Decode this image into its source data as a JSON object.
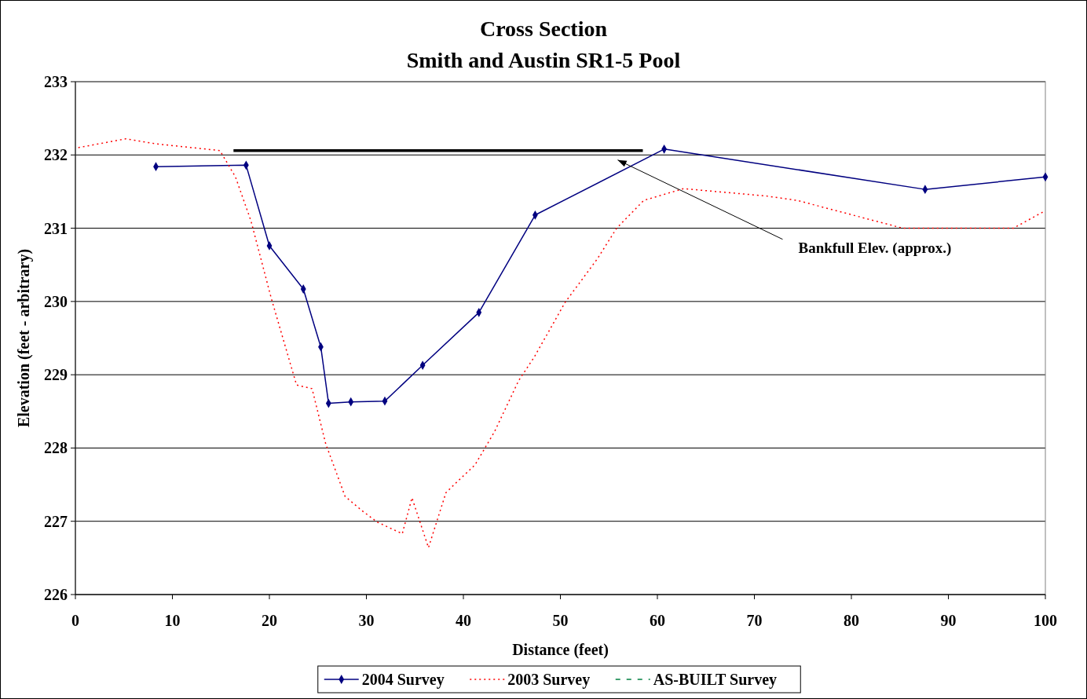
{
  "chart_data": {
    "type": "line",
    "title": "Cross Section",
    "subtitle": "Smith and Austin SR1-5 Pool",
    "xlabel": "Distance (feet)",
    "ylabel": "Elevation (feet - arbitrary)",
    "xlim": [
      0,
      100
    ],
    "xticks": [
      0,
      10,
      20,
      30,
      40,
      50,
      60,
      70,
      80,
      90,
      100
    ],
    "ylim": [
      226,
      233
    ],
    "yticks": [
      226,
      227,
      228,
      229,
      230,
      231,
      232,
      233
    ],
    "grid": "y",
    "legend": "bottom",
    "series": [
      {
        "name": "2004 Survey",
        "color": "#000080",
        "marker": "diamond",
        "line_style": "solid",
        "x": [
          8.3,
          17.6,
          20.0,
          23.5,
          25.3,
          26.1,
          28.4,
          31.9,
          35.8,
          41.6,
          47.4,
          60.7,
          87.6,
          100
        ],
        "values": [
          231.84,
          231.86,
          230.76,
          230.17,
          229.38,
          228.61,
          228.63,
          228.64,
          229.13,
          229.85,
          231.18,
          232.08,
          231.53,
          231.7
        ]
      },
      {
        "name": "2003 Survey",
        "color": "#ff0000",
        "marker": "none",
        "line_style": "dotted",
        "x": [
          0.3,
          5.2,
          8.4,
          14.9,
          16.5,
          18.1,
          20.2,
          22.8,
          24.4,
          25.8,
          27.8,
          29.5,
          31.1,
          33.7,
          34.7,
          36.4,
          38.2,
          39.2,
          41.2,
          43.2,
          45.7,
          47.3,
          50.5,
          53.8,
          55.8,
          58.6,
          62.7,
          71.2,
          74.4,
          85.3,
          96.7,
          100
        ],
        "values": [
          232.1,
          232.22,
          232.15,
          232.06,
          231.7,
          231.1,
          230.04,
          228.86,
          228.81,
          228.06,
          227.34,
          227.15,
          226.99,
          226.83,
          227.32,
          226.64,
          227.39,
          227.52,
          227.77,
          228.22,
          228.92,
          229.24,
          229.99,
          230.58,
          231.0,
          231.38,
          231.54,
          231.44,
          231.38,
          231.0,
          231.0,
          231.24
        ]
      },
      {
        "name": "AS-BUILT Survey",
        "color": "#008040",
        "marker": "none",
        "line_style": "dashed"
      },
      {
        "color": "#000000",
        "marker": "none",
        "line_style": "solid",
        "x": [
          16.3,
          58.5
        ],
        "values": [
          232.06,
          232.06
        ]
      }
    ],
    "annotations": [
      "Bankfull Elev. (approx.)"
    ]
  }
}
